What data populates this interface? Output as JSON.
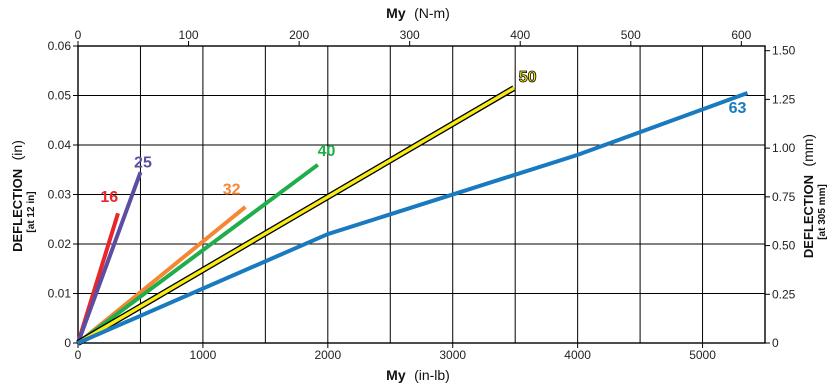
{
  "chart_data": {
    "type": "line",
    "title": "",
    "x_axis_bottom": {
      "label_main": "My",
      "label_unit": "(in-lb)",
      "range": [
        0,
        5500
      ],
      "ticks": [
        0,
        1000,
        2000,
        3000,
        4000,
        5000
      ]
    },
    "x_axis_top": {
      "label_main": "My",
      "label_unit": "(N-m)",
      "range": [
        0,
        621.4
      ],
      "ticks": [
        0,
        100,
        200,
        300,
        400,
        500,
        600
      ]
    },
    "y_axis_left": {
      "label_main": "DEFLECTION",
      "label_unit": "(in)",
      "label_sub": "[at 12 in]",
      "range": [
        0,
        0.06
      ],
      "ticks": [
        "0",
        "0.01",
        "0.02",
        "0.03",
        "0.04",
        "0.05",
        "0.06"
      ]
    },
    "y_axis_right": {
      "label_main": "DEFLECTION",
      "label_unit": "(mm)",
      "label_sub": "[at 305 mm]",
      "range": [
        0,
        1.524
      ],
      "ticks": [
        "0",
        "0.25",
        "0.50",
        "0.75",
        "1.00",
        "1.25",
        "1.50"
      ]
    },
    "grid": true,
    "series": [
      {
        "name": "16",
        "color": "#e8262b",
        "points": [
          [
            0,
            0
          ],
          [
            320,
            0.0262
          ]
        ],
        "label_at": [
          250,
          0.0285
        ]
      },
      {
        "name": "25",
        "color": "#5b4ea2",
        "points": [
          [
            0,
            0
          ],
          [
            500,
            0.0345
          ]
        ],
        "label_at": [
          520,
          0.0355
        ]
      },
      {
        "name": "32",
        "color": "#f58634",
        "points": [
          [
            0,
            0
          ],
          [
            1340,
            0.0275
          ]
        ],
        "label_at": [
          1230,
          0.03
        ]
      },
      {
        "name": "40",
        "color": "#1fae4b",
        "points": [
          [
            0,
            0
          ],
          [
            1920,
            0.036
          ]
        ],
        "label_at": [
          1990,
          0.0378
        ]
      },
      {
        "name": "50",
        "color": "#f7ec13",
        "outline": "#000000",
        "points": [
          [
            0,
            0
          ],
          [
            3490,
            0.0515
          ]
        ],
        "label_at": [
          3600,
          0.0527
        ]
      },
      {
        "name": "63",
        "color": "#1a7abf",
        "points": [
          [
            0,
            0
          ],
          [
            2000,
            0.022
          ],
          [
            4000,
            0.038
          ],
          [
            5360,
            0.0505
          ]
        ],
        "label_at": [
          5280,
          0.0465
        ]
      }
    ]
  }
}
